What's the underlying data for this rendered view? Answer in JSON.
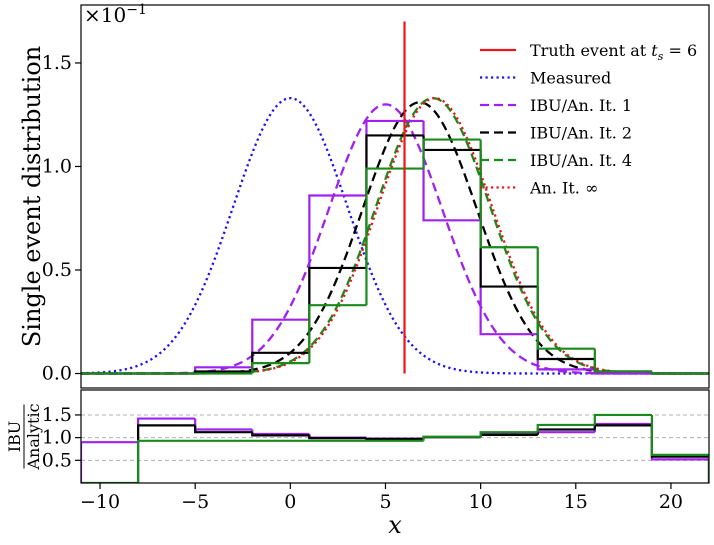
{
  "chart_data": [
    {
      "type": "line",
      "panel": "main",
      "ylabel": "Single event distribution",
      "y_multiplier": "×10",
      "y_multiplier_exp": "−1",
      "xlim": [
        -11,
        22
      ],
      "ylim": [
        -0.07,
        1.78
      ],
      "xticks": [
        -10,
        -5,
        0,
        5,
        10,
        15,
        20
      ],
      "yticks": [
        0.0,
        0.5,
        1.0,
        1.5
      ],
      "ytick_labels": [
        "0.0",
        "0.5",
        "1.0",
        "1.5"
      ],
      "grid": false,
      "legend_position": "top-right",
      "truth": {
        "name": "Truth event at t_s = 6",
        "x": 6,
        "y_top": 1.7,
        "color": "#e8161b"
      },
      "curves": [
        {
          "name": "Measured",
          "mu": 0,
          "sigma": 3.0,
          "amp": 1.33,
          "color": "#1a12f2",
          "style": "dotted"
        },
        {
          "name": "IBU/An. It. 1",
          "mu": 5.0,
          "sigma": 3.0,
          "amp": 1.3,
          "color": "#a020f0",
          "style": "dashed"
        },
        {
          "name": "IBU/An. It. 2",
          "mu": 6.8,
          "sigma": 3.0,
          "amp": 1.31,
          "color": "#000000",
          "style": "dashed"
        },
        {
          "name": "IBU/An. It. 4",
          "mu": 7.5,
          "sigma": 3.0,
          "amp": 1.33,
          "color": "#1a8a1a",
          "style": "dashed"
        },
        {
          "name": "An. It. ∞",
          "mu": 7.6,
          "sigma": 3.0,
          "amp": 1.33,
          "color": "#e8161b",
          "style": "dotted"
        }
      ],
      "bin_edges": [
        -11,
        -8,
        -5,
        -2,
        1,
        4,
        7,
        10,
        13,
        16,
        19,
        22
      ],
      "histograms": [
        {
          "series": "IBU/An. It. 1",
          "color": "#a020f0",
          "values": [
            0,
            0,
            0.03,
            0.26,
            0.86,
            1.22,
            0.74,
            0.19,
            0.02,
            0,
            0
          ]
        },
        {
          "series": "IBU/An. It. 2",
          "color": "#000000",
          "values": [
            0,
            0,
            0.01,
            0.1,
            0.51,
            1.15,
            1.08,
            0.42,
            0.07,
            0.01,
            0
          ]
        },
        {
          "series": "IBU/An. It. 4",
          "color": "#1a8a1a",
          "values": [
            0,
            0,
            0,
            0.05,
            0.33,
            0.99,
            1.13,
            0.61,
            0.12,
            0.01,
            0
          ]
        }
      ]
    },
    {
      "type": "line",
      "panel": "ratio",
      "ylabel_num": "IBU",
      "ylabel_den": "Analytic",
      "xlabel": "x",
      "xlim": [
        -11,
        22
      ],
      "ylim": [
        0,
        2.05
      ],
      "xticks": [
        -10,
        -5,
        0,
        5,
        10,
        15,
        20
      ],
      "xtick_labels": [
        "−10",
        "−5",
        "0",
        "5",
        "10",
        "15",
        "20"
      ],
      "yticks": [
        0.5,
        1.0,
        1.5
      ],
      "ytick_labels": [
        "0.5",
        "1.0",
        "1.5"
      ],
      "grid_lines": [
        0.5,
        1.0,
        1.5
      ],
      "bin_edges": [
        -11,
        -8,
        -5,
        -2,
        1,
        4,
        7,
        10,
        13,
        16,
        19,
        22
      ],
      "series": [
        {
          "name": "IBU/An. It. 1",
          "color": "#a020f0",
          "values": [
            0.9,
            1.42,
            1.18,
            1.08,
            1.0,
            0.98,
            1.01,
            1.08,
            1.12,
            1.3,
            0.52
          ]
        },
        {
          "name": "IBU/An. It. 2",
          "color": "#000000",
          "values": [
            null,
            1.27,
            1.12,
            1.05,
            0.99,
            0.97,
            1.01,
            1.06,
            1.18,
            1.27,
            0.58
          ]
        },
        {
          "name": "IBU/An. It. 4",
          "color": "#1a8a1a",
          "values": [
            0.0,
            0.93,
            0.93,
            0.93,
            0.93,
            0.93,
            1.02,
            1.12,
            1.28,
            1.5,
            0.62
          ]
        }
      ]
    }
  ]
}
